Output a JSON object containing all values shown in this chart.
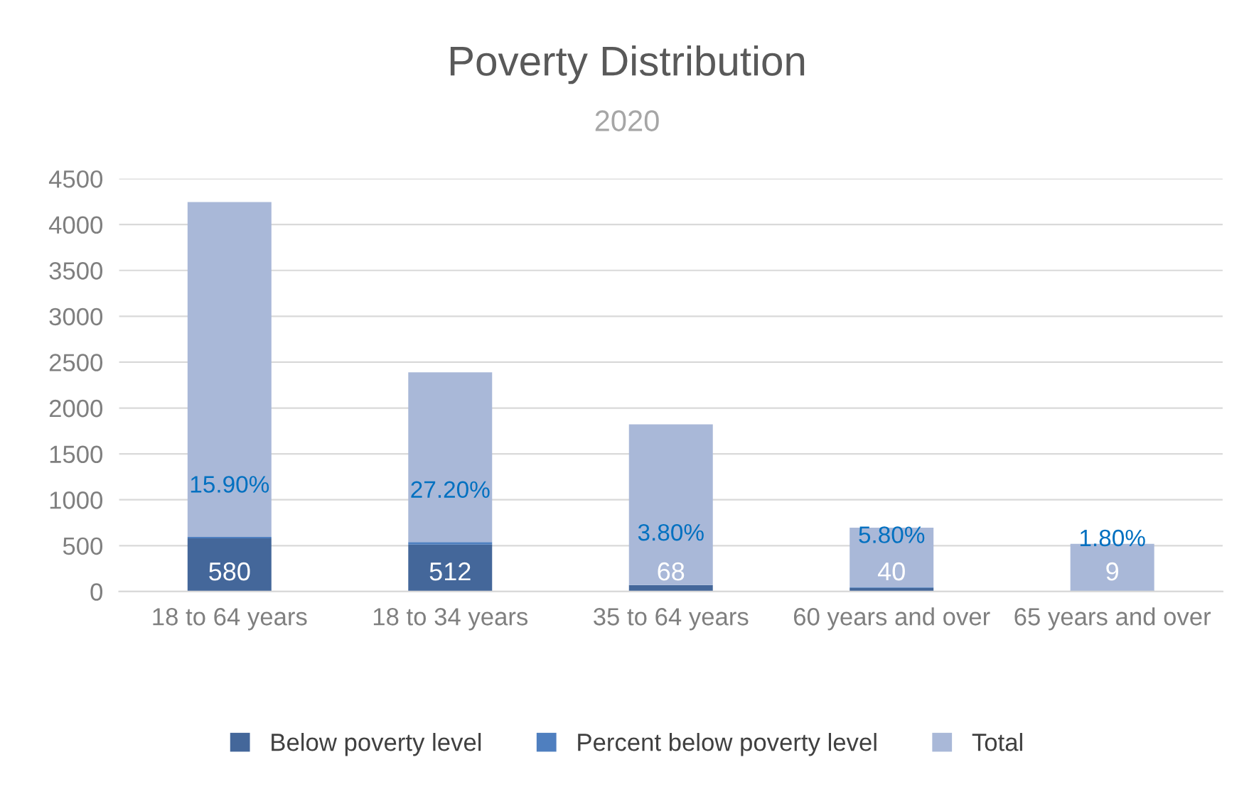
{
  "chart_data": {
    "type": "bar",
    "title": "Poverty Distribution",
    "subtitle": "2020",
    "categories": [
      "18 to 64 years",
      "18 to 34 years",
      "35 to 64 years",
      "60 years and over",
      "65 years and over"
    ],
    "stacked": true,
    "series": [
      {
        "name": "Below poverty level",
        "color": "#44679a",
        "values": [
          580,
          512,
          68,
          40,
          9
        ],
        "value_labels": [
          "580",
          "512",
          "68",
          "40",
          "9"
        ]
      },
      {
        "name": "Percent below poverty level",
        "color": "#4f7fbf",
        "values": [
          15.9,
          27.2,
          3.8,
          5.8,
          1.8
        ],
        "value_labels": [
          "15.90%",
          "27.20%",
          "3.80%",
          "5.80%",
          "1.80%"
        ]
      },
      {
        "name": "Total",
        "color": "#a9b8d8",
        "values": [
          3650,
          1850,
          1750,
          650,
          510
        ]
      }
    ],
    "ylim": [
      0,
      4500
    ],
    "yticks": [
      0,
      500,
      1000,
      1500,
      2000,
      2500,
      3000,
      3500,
      4000,
      4500
    ],
    "grid": "y",
    "legend": "bottom"
  }
}
